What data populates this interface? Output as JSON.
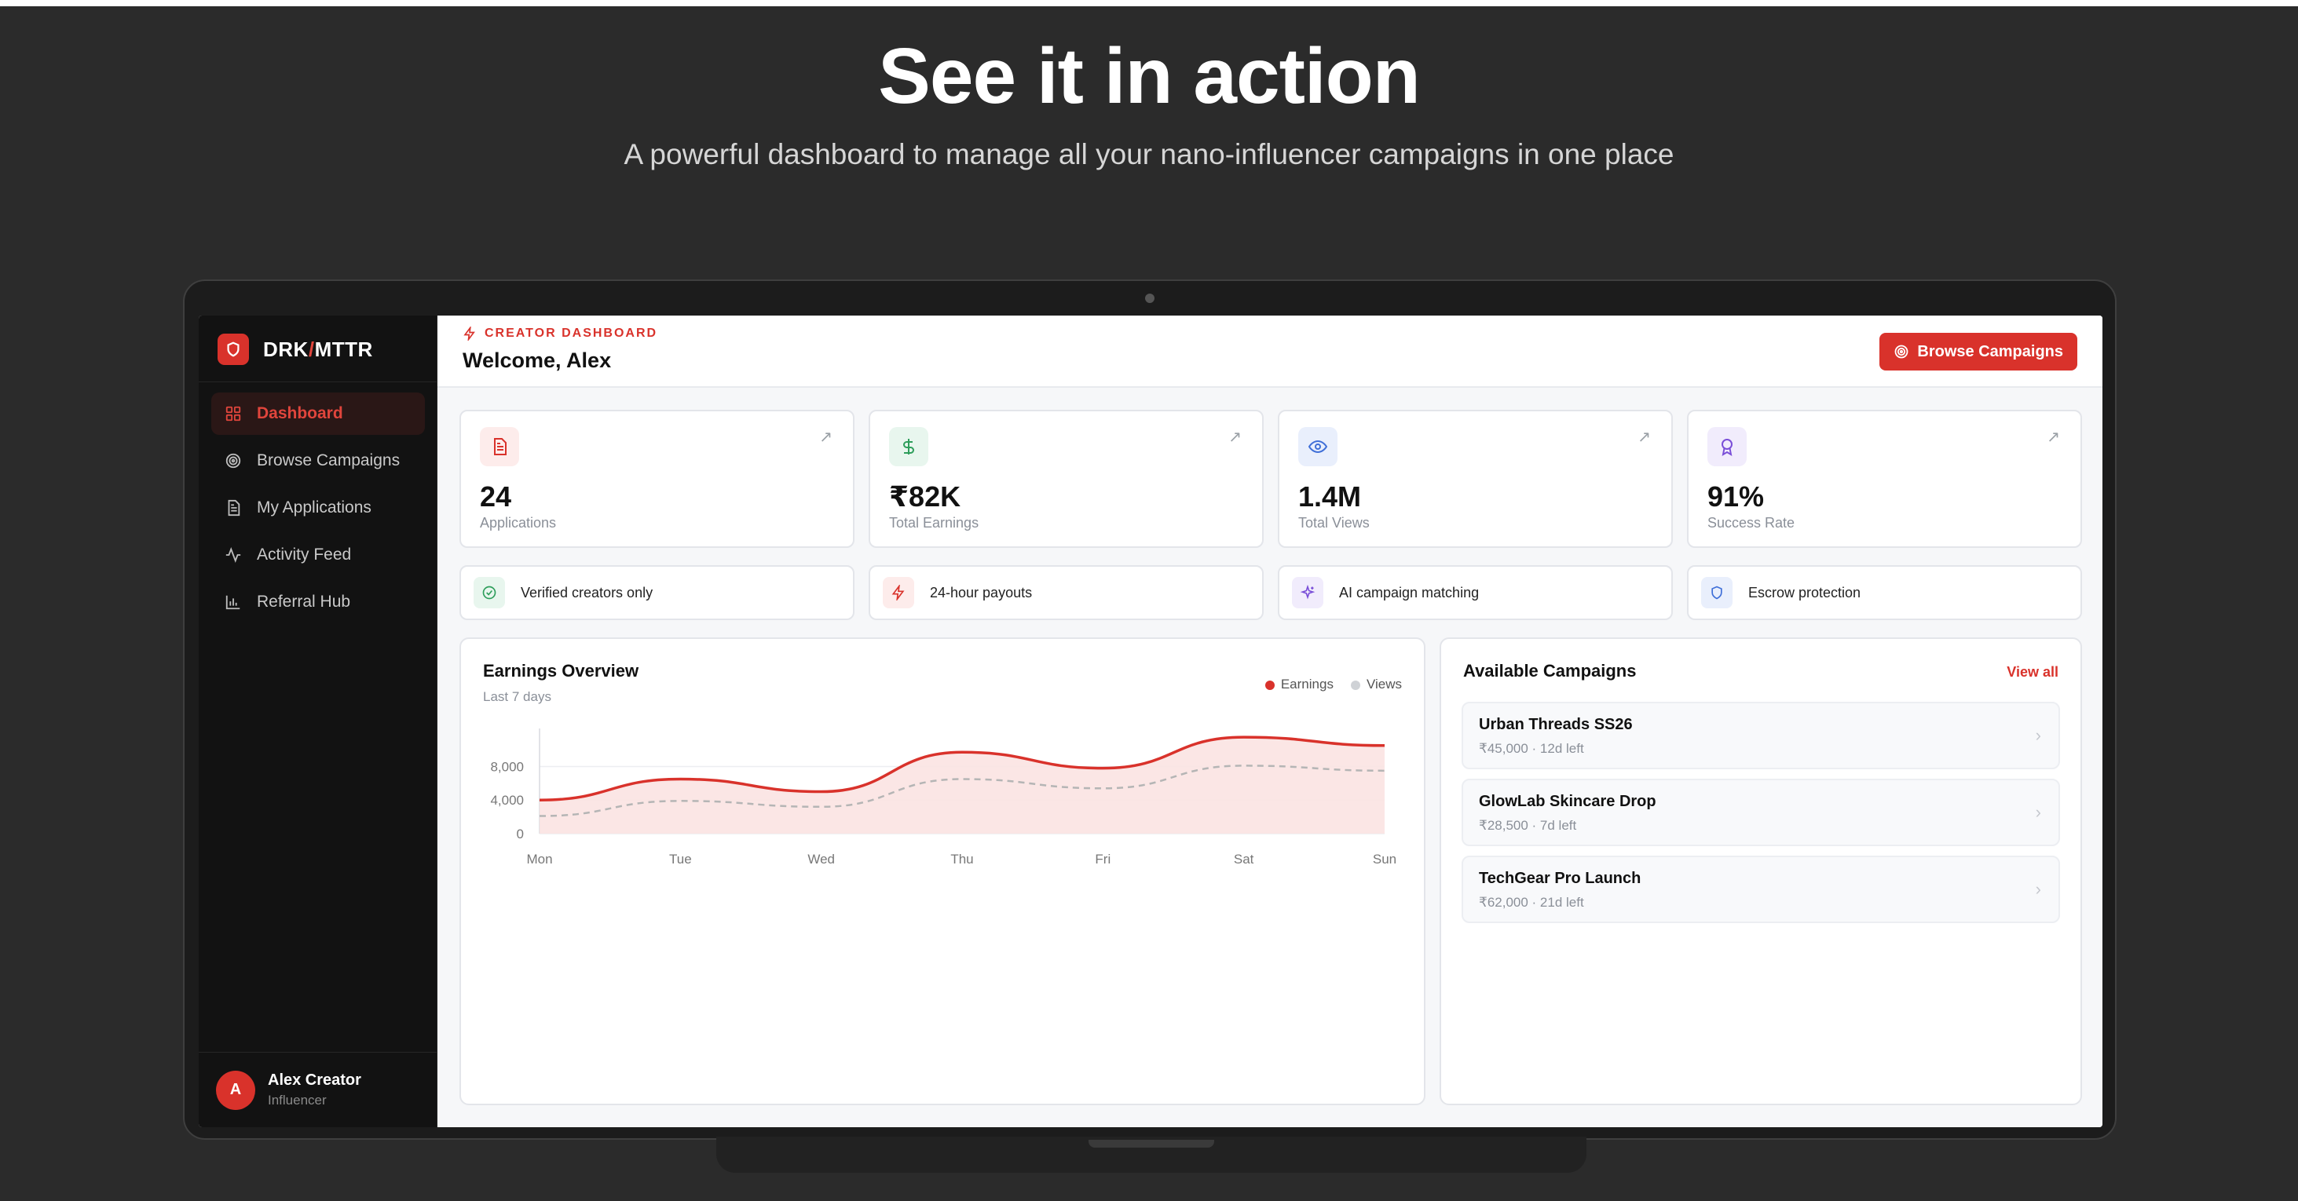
{
  "hero": {
    "title": "See it in action",
    "subtitle": "A powerful dashboard to manage all your nano-influencer campaigns in one place"
  },
  "brand": {
    "name_left": "DRK",
    "name_sep": "/",
    "name_right": "MTTR"
  },
  "sidebar": {
    "items": [
      {
        "label": "Dashboard",
        "icon": "grid-icon",
        "active": true
      },
      {
        "label": "Browse Campaigns",
        "icon": "target-icon",
        "active": false
      },
      {
        "label": "My Applications",
        "icon": "document-icon",
        "active": false
      },
      {
        "label": "Activity Feed",
        "icon": "activity-icon",
        "active": false
      },
      {
        "label": "Referral Hub",
        "icon": "bar-chart-icon",
        "active": false
      }
    ],
    "user": {
      "initial": "A",
      "name": "Alex Creator",
      "role": "Influencer"
    }
  },
  "header": {
    "kicker": "CREATOR DASHBOARD",
    "welcome": "Welcome, Alex",
    "browse_button": "Browse Campaigns"
  },
  "stats": [
    {
      "value": "24",
      "label": "Applications",
      "icon": "document-icon",
      "color": "#d9322b"
    },
    {
      "value": "₹82K",
      "label": "Total Earnings",
      "icon": "dollar-icon",
      "color": "#2e9e5b"
    },
    {
      "value": "1.4M",
      "label": "Total Views",
      "icon": "eye-icon",
      "color": "#3f6fd8"
    },
    {
      "value": "91%",
      "label": "Success Rate",
      "icon": "award-icon",
      "color": "#7a4fd8"
    }
  ],
  "features": [
    {
      "label": "Verified creators only",
      "icon": "check-circle-icon"
    },
    {
      "label": "24-hour payouts",
      "icon": "lightning-icon"
    },
    {
      "label": "AI campaign matching",
      "icon": "sparkle-icon"
    },
    {
      "label": "Escrow protection",
      "icon": "shield-icon"
    }
  ],
  "chart_panel": {
    "title": "Earnings Overview",
    "subtitle": "Last 7 days",
    "legend": [
      "Earnings",
      "Views"
    ]
  },
  "chart_data": {
    "type": "area",
    "x": [
      "Mon",
      "Tue",
      "Wed",
      "Thu",
      "Fri",
      "Sat",
      "Sun"
    ],
    "series": [
      {
        "name": "Earnings",
        "values": [
          4000,
          6500,
          5000,
          9700,
          7800,
          11500,
          10500
        ],
        "color": "#d9322b"
      },
      {
        "name": "Views",
        "values": [
          2100,
          3900,
          3200,
          6500,
          5400,
          8100,
          7500
        ],
        "color": "#b5b5b5"
      }
    ],
    "yticks": [
      "0",
      "4,000",
      "8,000"
    ],
    "ylim": [
      0,
      11600
    ],
    "grid": true
  },
  "campaigns": {
    "title": "Available Campaigns",
    "view_all": "View all",
    "items": [
      {
        "name": "Urban Threads SS26",
        "meta": "₹45,000 · 12d left"
      },
      {
        "name": "GlowLab Skincare Drop",
        "meta": "₹28,500 · 7d left"
      },
      {
        "name": "TechGear Pro Launch",
        "meta": "₹62,000 · 21d left"
      }
    ]
  }
}
